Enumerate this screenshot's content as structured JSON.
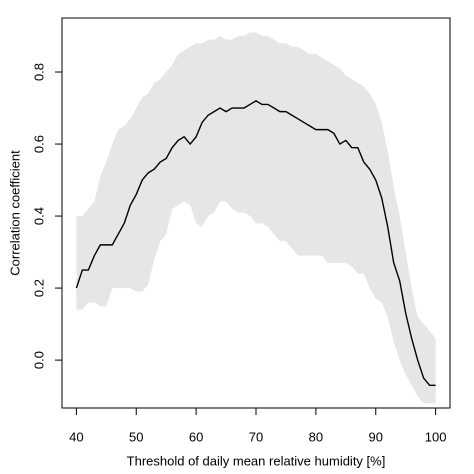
{
  "chart_data": {
    "type": "line",
    "xlabel": "Threshold of daily mean relative humidity [%]",
    "ylabel": "Correlation coefficient",
    "x": [
      40,
      41,
      42,
      43,
      44,
      45,
      46,
      47,
      48,
      49,
      50,
      51,
      52,
      53,
      54,
      55,
      56,
      57,
      58,
      59,
      60,
      61,
      62,
      63,
      64,
      65,
      66,
      67,
      68,
      69,
      70,
      71,
      72,
      73,
      74,
      75,
      76,
      77,
      78,
      79,
      80,
      81,
      82,
      83,
      84,
      85,
      86,
      87,
      88,
      89,
      90,
      91,
      92,
      93,
      94,
      95,
      96,
      97,
      98,
      99,
      100
    ],
    "values": [
      0.2,
      0.25,
      0.25,
      0.29,
      0.32,
      0.32,
      0.32,
      0.35,
      0.38,
      0.43,
      0.46,
      0.5,
      0.52,
      0.53,
      0.55,
      0.56,
      0.59,
      0.61,
      0.62,
      0.6,
      0.62,
      0.66,
      0.68,
      0.69,
      0.7,
      0.69,
      0.7,
      0.7,
      0.7,
      0.71,
      0.72,
      0.71,
      0.71,
      0.7,
      0.69,
      0.69,
      0.68,
      0.67,
      0.66,
      0.65,
      0.64,
      0.64,
      0.64,
      0.63,
      0.6,
      0.61,
      0.59,
      0.59,
      0.55,
      0.53,
      0.5,
      0.45,
      0.37,
      0.27,
      0.22,
      0.13,
      0.06,
      0.0,
      -0.05,
      -0.07,
      -0.07
    ],
    "color": "#000000",
    "band": {
      "color": "#e6e6e6",
      "upper": [
        0.4,
        0.4,
        0.42,
        0.44,
        0.51,
        0.55,
        0.6,
        0.64,
        0.65,
        0.67,
        0.7,
        0.73,
        0.74,
        0.77,
        0.78,
        0.8,
        0.82,
        0.85,
        0.86,
        0.87,
        0.88,
        0.88,
        0.89,
        0.89,
        0.9,
        0.89,
        0.89,
        0.9,
        0.9,
        0.91,
        0.91,
        0.9,
        0.9,
        0.89,
        0.88,
        0.88,
        0.87,
        0.87,
        0.86,
        0.85,
        0.85,
        0.84,
        0.83,
        0.82,
        0.81,
        0.79,
        0.78,
        0.77,
        0.76,
        0.74,
        0.71,
        0.66,
        0.58,
        0.48,
        0.4,
        0.3,
        0.2,
        0.12,
        0.1,
        0.08,
        0.06
      ],
      "lower": [
        0.14,
        0.14,
        0.16,
        0.16,
        0.15,
        0.15,
        0.2,
        0.2,
        0.2,
        0.2,
        0.19,
        0.19,
        0.21,
        0.28,
        0.33,
        0.35,
        0.42,
        0.43,
        0.44,
        0.43,
        0.38,
        0.37,
        0.4,
        0.41,
        0.44,
        0.44,
        0.42,
        0.41,
        0.41,
        0.4,
        0.38,
        0.38,
        0.37,
        0.35,
        0.33,
        0.33,
        0.31,
        0.29,
        0.29,
        0.29,
        0.29,
        0.29,
        0.27,
        0.27,
        0.27,
        0.27,
        0.26,
        0.24,
        0.24,
        0.2,
        0.17,
        0.16,
        0.12,
        0.05,
        0.0,
        -0.04,
        -0.07,
        -0.1,
        -0.12,
        -0.12,
        -0.12
      ]
    },
    "xlim": [
      37.6,
      102.4
    ],
    "ylim": [
      -0.133,
      0.95
    ],
    "xticks": [
      40,
      50,
      60,
      70,
      80,
      90,
      100
    ],
    "yticks": [
      {
        "value": 0,
        "label": "0.0"
      },
      0.2,
      0.4,
      0.6,
      0.8
    ],
    "grid": false
  }
}
